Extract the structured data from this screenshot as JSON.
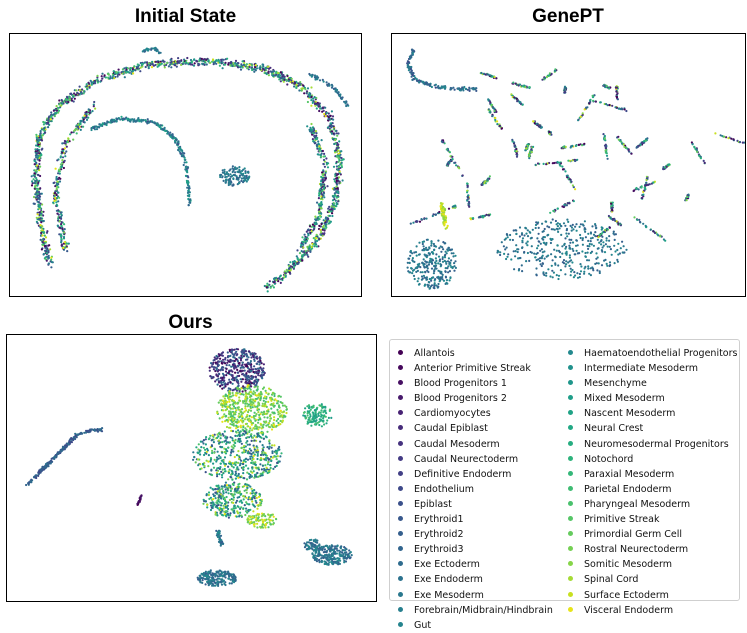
{
  "figure": {
    "panels": [
      {
        "title": "Initial State"
      },
      {
        "title": "GenePT"
      },
      {
        "title": "Ours"
      }
    ]
  },
  "chart_data": [
    {
      "type": "scatter",
      "title": "Initial State",
      "xlabel": "",
      "ylabel": "",
      "axes_ticks": false,
      "grid": false
    },
    {
      "type": "scatter",
      "title": "GenePT",
      "xlabel": "",
      "ylabel": "",
      "axes_ticks": false,
      "grid": false
    },
    {
      "type": "scatter",
      "title": "Ours",
      "xlabel": "",
      "ylabel": "",
      "axes_ticks": false,
      "grid": false
    }
  ],
  "legend": {
    "placement": "bottom-right",
    "colormap": "viridis",
    "entries": [
      {
        "label": "Allantois",
        "color": "#440154"
      },
      {
        "label": "Anterior Primitive Streak",
        "color": "#46085c"
      },
      {
        "label": "Blood Progenitors 1",
        "color": "#471063"
      },
      {
        "label": "Blood Progenitors 2",
        "color": "#481a6c"
      },
      {
        "label": "Cardiomyocytes",
        "color": "#482374"
      },
      {
        "label": "Caudal Epiblast",
        "color": "#472c7a"
      },
      {
        "label": "Caudal Mesoderm",
        "color": "#46337f"
      },
      {
        "label": "Caudal Neurectoderm",
        "color": "#443b84"
      },
      {
        "label": "Definitive Endoderm",
        "color": "#424086"
      },
      {
        "label": "Endothelium",
        "color": "#3e4989"
      },
      {
        "label": "Epiblast",
        "color": "#3b518b"
      },
      {
        "label": "Erythroid1",
        "color": "#38588c"
      },
      {
        "label": "Erythroid2",
        "color": "#355f8d"
      },
      {
        "label": "Erythroid3",
        "color": "#32658e"
      },
      {
        "label": "Exe Ectoderm",
        "color": "#2f6c8e"
      },
      {
        "label": "Exe Endoderm",
        "color": "#2c728e"
      },
      {
        "label": "Exe Mesoderm",
        "color": "#2a788e"
      },
      {
        "label": "Forebrain/Midbrain/Hindbrain",
        "color": "#277f8e"
      },
      {
        "label": "Gut",
        "color": "#25848e"
      },
      {
        "label": "Haematoendothelial Progenitors",
        "color": "#23898e"
      },
      {
        "label": "Intermediate Mesoderm",
        "color": "#21918c"
      },
      {
        "label": "Mesenchyme",
        "color": "#1f968b"
      },
      {
        "label": "Mixed Mesoderm",
        "color": "#1f9e89"
      },
      {
        "label": "Nascent Mesoderm",
        "color": "#20a386"
      },
      {
        "label": "Neural Crest",
        "color": "#22a884"
      },
      {
        "label": "Neuromesodermal Progenitors",
        "color": "#27ad81"
      },
      {
        "label": "Notochord",
        "color": "#2eb37c"
      },
      {
        "label": "Paraxial Mesoderm",
        "color": "#35b779"
      },
      {
        "label": "Parietal Endoderm",
        "color": "#3fbc73"
      },
      {
        "label": "Pharyngeal Mesoderm",
        "color": "#4ac16d"
      },
      {
        "label": "Primitive Streak",
        "color": "#56c667"
      },
      {
        "label": "Primordial Germ Cell",
        "color": "#65cb5e"
      },
      {
        "label": "Rostral Neurectoderm",
        "color": "#75d054"
      },
      {
        "label": "Somitic Mesoderm",
        "color": "#86d549"
      },
      {
        "label": "Spinal Cord",
        "color": "#a5db36"
      },
      {
        "label": "Surface Ectoderm",
        "color": "#c8e020"
      },
      {
        "label": "Visceral Endoderm",
        "color": "#e7e419"
      }
    ]
  }
}
